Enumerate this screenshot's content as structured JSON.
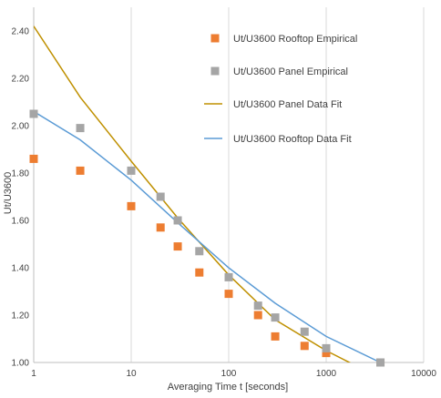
{
  "chart_data": {
    "type": "scatter",
    "title": "",
    "xlabel": "Averaging Time t [seconds]",
    "ylabel": "Ut/U3600",
    "x_scale": "log",
    "xlim": [
      1,
      10000
    ],
    "ylim": [
      1.0,
      2.5
    ],
    "x_ticks": [
      1,
      10,
      100,
      1000,
      10000
    ],
    "x_tick_labels": [
      "1",
      "10",
      "100",
      "1000",
      "10000"
    ],
    "y_ticks": [
      1.0,
      1.2,
      1.4,
      1.6,
      1.8,
      2.0,
      2.2,
      2.4
    ],
    "y_tick_labels": [
      "1.00",
      "1.20",
      "1.40",
      "1.60",
      "1.80",
      "2.00",
      "2.20",
      "2.40"
    ],
    "grid": "vertical",
    "legend_position": "top-right",
    "series": [
      {
        "name": "Ut/U3600 Rooftop Empirical",
        "kind": "markers",
        "color": "#ED7D31",
        "x": [
          1,
          3,
          10,
          20,
          30,
          50,
          100,
          200,
          300,
          600,
          1000,
          3600
        ],
        "y": [
          1.86,
          1.81,
          1.66,
          1.57,
          1.49,
          1.38,
          1.29,
          1.2,
          1.11,
          1.07,
          1.04,
          1.0
        ]
      },
      {
        "name": "Ut/U3600 Panel Empirical",
        "kind": "markers",
        "color": "#A5A5A5",
        "x": [
          1,
          3,
          10,
          20,
          30,
          50,
          100,
          200,
          300,
          600,
          1000,
          3600
        ],
        "y": [
          2.05,
          1.99,
          1.81,
          1.7,
          1.6,
          1.47,
          1.36,
          1.24,
          1.19,
          1.13,
          1.06,
          1.0
        ]
      },
      {
        "name": "Ut/U3600 Panel Data Fit",
        "kind": "line",
        "color": "#BF9000",
        "x": [
          1,
          3,
          10,
          30,
          100,
          300,
          1000,
          3000
        ],
        "y": [
          2.42,
          2.12,
          1.85,
          1.61,
          1.37,
          1.18,
          1.05,
          0.95
        ]
      },
      {
        "name": "Ut/U3600 Rooftop Data Fit",
        "kind": "line",
        "color": "#5B9BD5",
        "x": [
          1,
          3,
          10,
          30,
          100,
          300,
          1000,
          3600
        ],
        "y": [
          2.06,
          1.94,
          1.77,
          1.59,
          1.4,
          1.25,
          1.11,
          1.0
        ]
      }
    ]
  }
}
